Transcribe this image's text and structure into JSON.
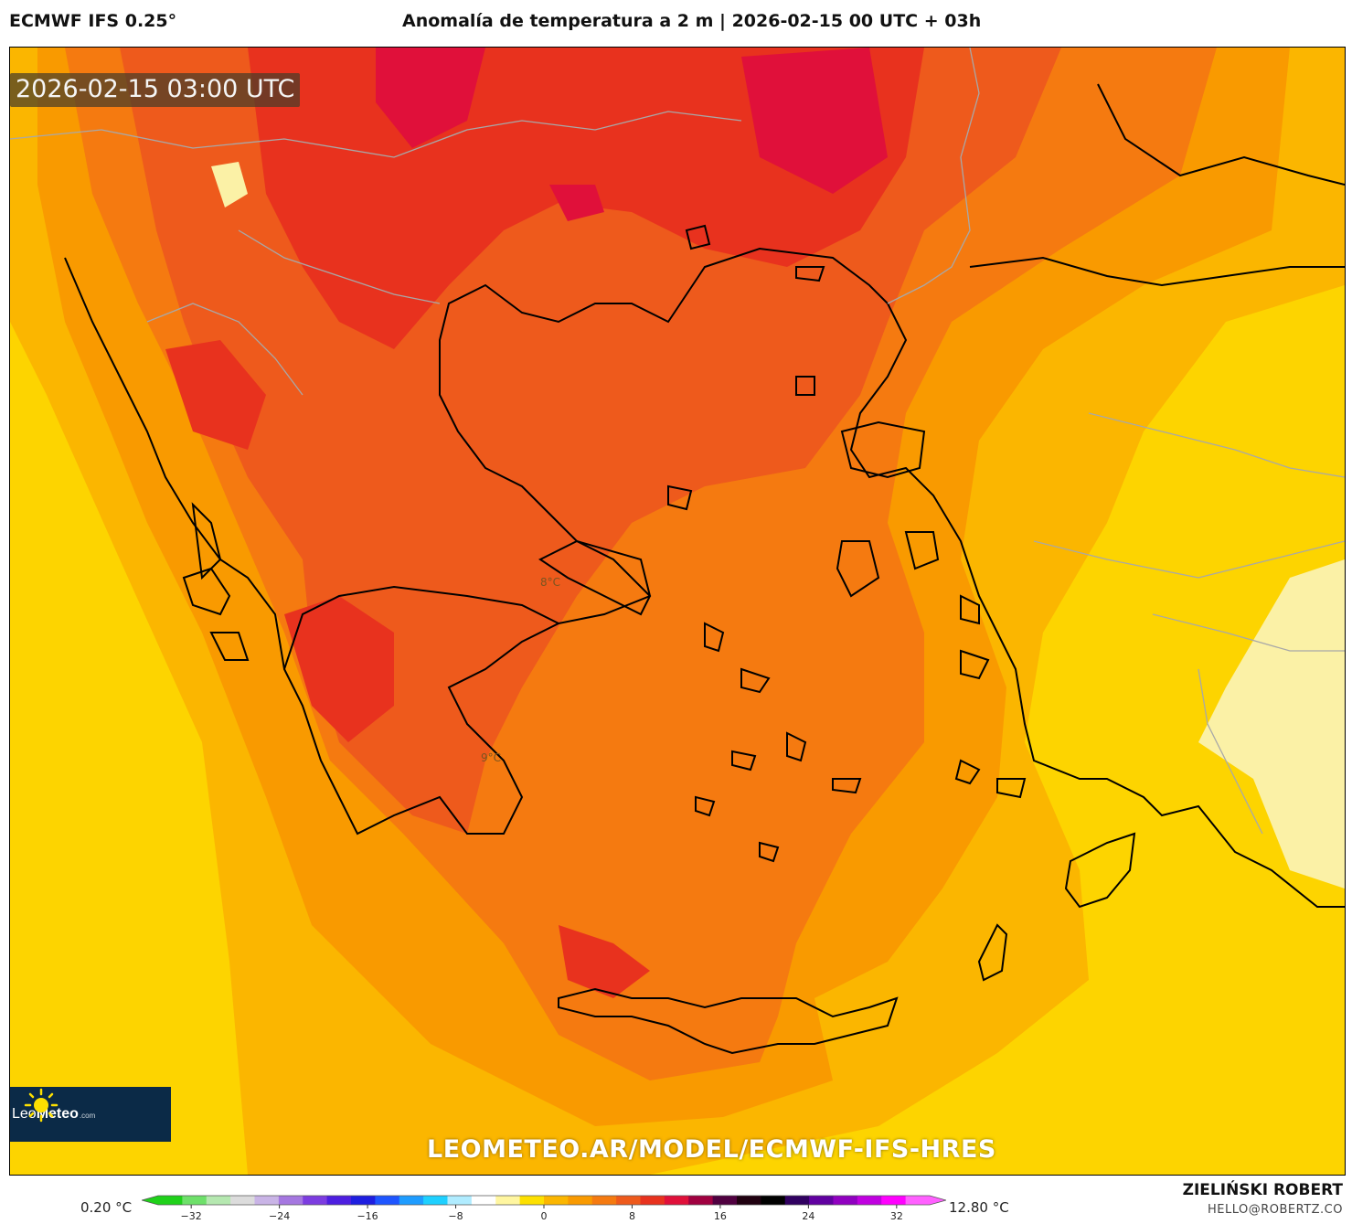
{
  "header": {
    "model": "ECMWF IFS 0.25°",
    "title": "Anomalía de temperatura a 2 m | 2026-02-15 00 UTC + 03h"
  },
  "map": {
    "valid_time": "2026-02-15 03:00 UTC",
    "region": "Greece / Aegean Sea",
    "point_labels": [
      {
        "text": "8°C"
      },
      {
        "text": "9°C"
      }
    ],
    "watermark": "LEOMETEO.AR/MODEL/ECMWF-IFS-HRES",
    "colors": {
      "background_anomaly": "#fdd400",
      "warm_1": "#fbb600",
      "warm_2": "#f99a00",
      "warm_3": "#f57a10",
      "warm_4": "#ee5a1c",
      "warm_5": "#e8321e",
      "warm_6": "#e0103a",
      "cool_pale": "#fbf1a6",
      "coastline": "#000000",
      "borders": "#a8a8a8"
    }
  },
  "logo": {
    "brand_light": "Leo",
    "brand_bold": "Meteo",
    "suffix": ".com",
    "icon": "sun-icon"
  },
  "colorbar": {
    "min_label": "0.20 °C",
    "max_label": "12.80 °C",
    "ticks": [
      "−32",
      "−24",
      "−16",
      "−8",
      "0",
      "8",
      "16",
      "24",
      "32"
    ],
    "tick_values": [
      -32,
      -24,
      -16,
      -8,
      0,
      8,
      16,
      24,
      32
    ],
    "range": [
      -35,
      35
    ],
    "colors": [
      "#1fd11a",
      "#6ee06a",
      "#b5e8b0",
      "#dcdcdc",
      "#c9b4e6",
      "#a577e0",
      "#7c3ce0",
      "#4d1ee0",
      "#1e1ee0",
      "#1e55ff",
      "#1e9cff",
      "#1ed0ff",
      "#b0ecff",
      "#ffffff",
      "#fff6a0",
      "#fde000",
      "#fbb600",
      "#f99a00",
      "#f57a10",
      "#ee5a1c",
      "#e8321e",
      "#e0103a",
      "#a00040",
      "#500040",
      "#200010",
      "#000000",
      "#300060",
      "#6000a0",
      "#9000c0",
      "#c000e0",
      "#ff00ff",
      "#ff60ff"
    ]
  },
  "footer": {
    "author": "ZIELIŃSKI ROBERT",
    "email": "HELLO@ROBERTZ.CO"
  }
}
